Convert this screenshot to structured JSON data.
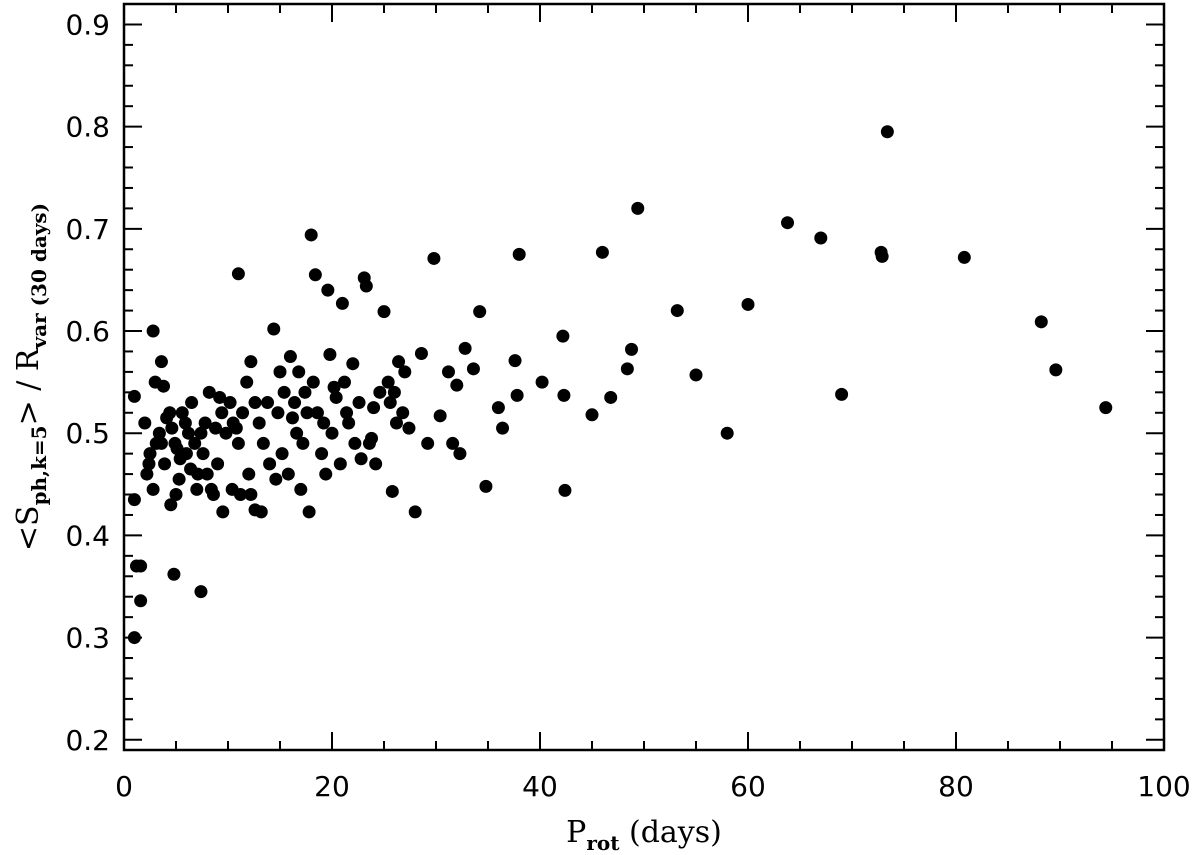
{
  "chart_data": {
    "type": "scatter",
    "title": "",
    "xlabel": {
      "main": "P",
      "sub": "rot",
      "rest": " (days)"
    },
    "ylabel": {
      "pre": "<S",
      "sub1": "ph,k=5",
      "mid": "> / R",
      "sub2": "var (30 days)"
    },
    "xlim": [
      0,
      100
    ],
    "ylim": [
      0.19,
      0.92
    ],
    "x_ticks": [
      0,
      20,
      40,
      60,
      80,
      100
    ],
    "y_ticks": [
      0.2,
      0.3,
      0.4,
      0.5,
      0.6,
      0.7,
      0.8,
      0.9
    ],
    "x_tick_labels": [
      "0",
      "20",
      "40",
      "60",
      "80",
      "100"
    ],
    "y_tick_labels": [
      "0.2",
      "0.3",
      "0.4",
      "0.5",
      "0.6",
      "0.7",
      "0.8",
      "0.9"
    ],
    "x_minor_step": 5,
    "y_minor_step": 0.02,
    "grid": false,
    "marker_color": "#000000",
    "points": [
      [
        1.0,
        0.3
      ],
      [
        1.2,
        0.37
      ],
      [
        1.6,
        0.37
      ],
      [
        1.6,
        0.336
      ],
      [
        1.0,
        0.435
      ],
      [
        1.0,
        0.536
      ],
      [
        2.8,
        0.6
      ],
      [
        3.6,
        0.57
      ],
      [
        3.0,
        0.55
      ],
      [
        3.8,
        0.546
      ],
      [
        4.8,
        0.362
      ],
      [
        7.4,
        0.345
      ],
      [
        2.0,
        0.51
      ],
      [
        2.5,
        0.48
      ],
      [
        2.2,
        0.46
      ],
      [
        2.8,
        0.445
      ],
      [
        3.4,
        0.5
      ],
      [
        3.6,
        0.49
      ],
      [
        3.9,
        0.47
      ],
      [
        4.1,
        0.515
      ],
      [
        4.4,
        0.52
      ],
      [
        4.6,
        0.505
      ],
      [
        4.9,
        0.49
      ],
      [
        5.1,
        0.485
      ],
      [
        5.4,
        0.475
      ],
      [
        5.6,
        0.52
      ],
      [
        5.9,
        0.51
      ],
      [
        6.2,
        0.5
      ],
      [
        6.5,
        0.53
      ],
      [
        6.8,
        0.49
      ],
      [
        7.1,
        0.46
      ],
      [
        7.4,
        0.5
      ],
      [
        7.8,
        0.51
      ],
      [
        8.2,
        0.54
      ],
      [
        8.6,
        0.44
      ],
      [
        9.0,
        0.47
      ],
      [
        9.4,
        0.52
      ],
      [
        9.8,
        0.5
      ],
      [
        10.2,
        0.53
      ],
      [
        4.5,
        0.43
      ],
      [
        5.0,
        0.44
      ],
      [
        5.3,
        0.455
      ],
      [
        2.4,
        0.47
      ],
      [
        3.1,
        0.49
      ],
      [
        6.0,
        0.48
      ],
      [
        7.0,
        0.445
      ],
      [
        8.0,
        0.46
      ],
      [
        9.5,
        0.423
      ],
      [
        10.4,
        0.445
      ],
      [
        11.2,
        0.44
      ],
      [
        12.2,
        0.44
      ],
      [
        12.6,
        0.425
      ],
      [
        13.2,
        0.423
      ],
      [
        11.0,
        0.656
      ],
      [
        10.5,
        0.51
      ],
      [
        11.0,
        0.49
      ],
      [
        11.4,
        0.52
      ],
      [
        11.8,
        0.55
      ],
      [
        12.2,
        0.57
      ],
      [
        12.6,
        0.53
      ],
      [
        13.0,
        0.51
      ],
      [
        13.4,
        0.49
      ],
      [
        14.4,
        0.602
      ],
      [
        15.0,
        0.56
      ],
      [
        15.4,
        0.54
      ],
      [
        16.0,
        0.575
      ],
      [
        16.4,
        0.53
      ],
      [
        16.8,
        0.56
      ],
      [
        17.2,
        0.49
      ],
      [
        17.6,
        0.52
      ],
      [
        18.0,
        0.694
      ],
      [
        18.4,
        0.655
      ],
      [
        19.6,
        0.64
      ],
      [
        19.8,
        0.577
      ],
      [
        20.4,
        0.535
      ],
      [
        21.0,
        0.627
      ],
      [
        21.6,
        0.51
      ],
      [
        22.0,
        0.568
      ],
      [
        22.6,
        0.53
      ],
      [
        23.1,
        0.652
      ],
      [
        23.3,
        0.644
      ],
      [
        23.6,
        0.49
      ],
      [
        24.2,
        0.47
      ],
      [
        25.0,
        0.619
      ],
      [
        25.4,
        0.55
      ],
      [
        25.8,
        0.443
      ],
      [
        26.4,
        0.57
      ],
      [
        26.8,
        0.52
      ],
      [
        27.4,
        0.505
      ],
      [
        28.0,
        0.423
      ],
      [
        28.6,
        0.578
      ],
      [
        29.2,
        0.49
      ],
      [
        29.8,
        0.671
      ],
      [
        30.4,
        0.517
      ],
      [
        31.2,
        0.56
      ],
      [
        31.6,
        0.49
      ],
      [
        32.0,
        0.547
      ],
      [
        32.3,
        0.48
      ],
      [
        32.8,
        0.583
      ],
      [
        33.6,
        0.563
      ],
      [
        34.2,
        0.619
      ],
      [
        34.8,
        0.448
      ],
      [
        36.0,
        0.525
      ],
      [
        36.4,
        0.505
      ],
      [
        37.6,
        0.571
      ],
      [
        37.8,
        0.537
      ],
      [
        38.0,
        0.675
      ],
      [
        40.2,
        0.55
      ],
      [
        42.2,
        0.595
      ],
      [
        42.3,
        0.537
      ],
      [
        42.4,
        0.444
      ],
      [
        45.0,
        0.518
      ],
      [
        46.0,
        0.677
      ],
      [
        46.8,
        0.535
      ],
      [
        48.4,
        0.563
      ],
      [
        48.8,
        0.582
      ],
      [
        49.4,
        0.72
      ],
      [
        53.2,
        0.62
      ],
      [
        55.0,
        0.557
      ],
      [
        58.0,
        0.5
      ],
      [
        60.0,
        0.626
      ],
      [
        63.8,
        0.706
      ],
      [
        67.0,
        0.691
      ],
      [
        69.0,
        0.538
      ],
      [
        72.8,
        0.677
      ],
      [
        72.9,
        0.673
      ],
      [
        73.4,
        0.795
      ],
      [
        80.8,
        0.672
      ],
      [
        88.2,
        0.609
      ],
      [
        89.6,
        0.562
      ],
      [
        94.4,
        0.525
      ],
      [
        14.0,
        0.47
      ],
      [
        14.6,
        0.455
      ],
      [
        15.2,
        0.48
      ],
      [
        15.8,
        0.46
      ],
      [
        16.6,
        0.5
      ],
      [
        17.0,
        0.445
      ],
      [
        17.8,
        0.423
      ],
      [
        18.6,
        0.52
      ],
      [
        19.0,
        0.48
      ],
      [
        19.4,
        0.46
      ],
      [
        20.0,
        0.5
      ],
      [
        20.8,
        0.47
      ],
      [
        21.2,
        0.55
      ],
      [
        22.2,
        0.49
      ],
      [
        22.8,
        0.475
      ],
      [
        23.8,
        0.495
      ],
      [
        24.6,
        0.54
      ],
      [
        26.0,
        0.54
      ],
      [
        27.0,
        0.56
      ],
      [
        14.8,
        0.52
      ],
      [
        18.2,
        0.55
      ],
      [
        19.2,
        0.51
      ],
      [
        20.2,
        0.545
      ],
      [
        21.4,
        0.52
      ],
      [
        24.0,
        0.525
      ],
      [
        25.6,
        0.53
      ],
      [
        26.2,
        0.51
      ],
      [
        16.2,
        0.515
      ],
      [
        17.4,
        0.54
      ],
      [
        12.0,
        0.46
      ],
      [
        13.8,
        0.53
      ],
      [
        8.8,
        0.505
      ],
      [
        9.2,
        0.535
      ],
      [
        10.8,
        0.505
      ],
      [
        6.4,
        0.465
      ],
      [
        7.6,
        0.48
      ],
      [
        8.4,
        0.445
      ]
    ]
  }
}
